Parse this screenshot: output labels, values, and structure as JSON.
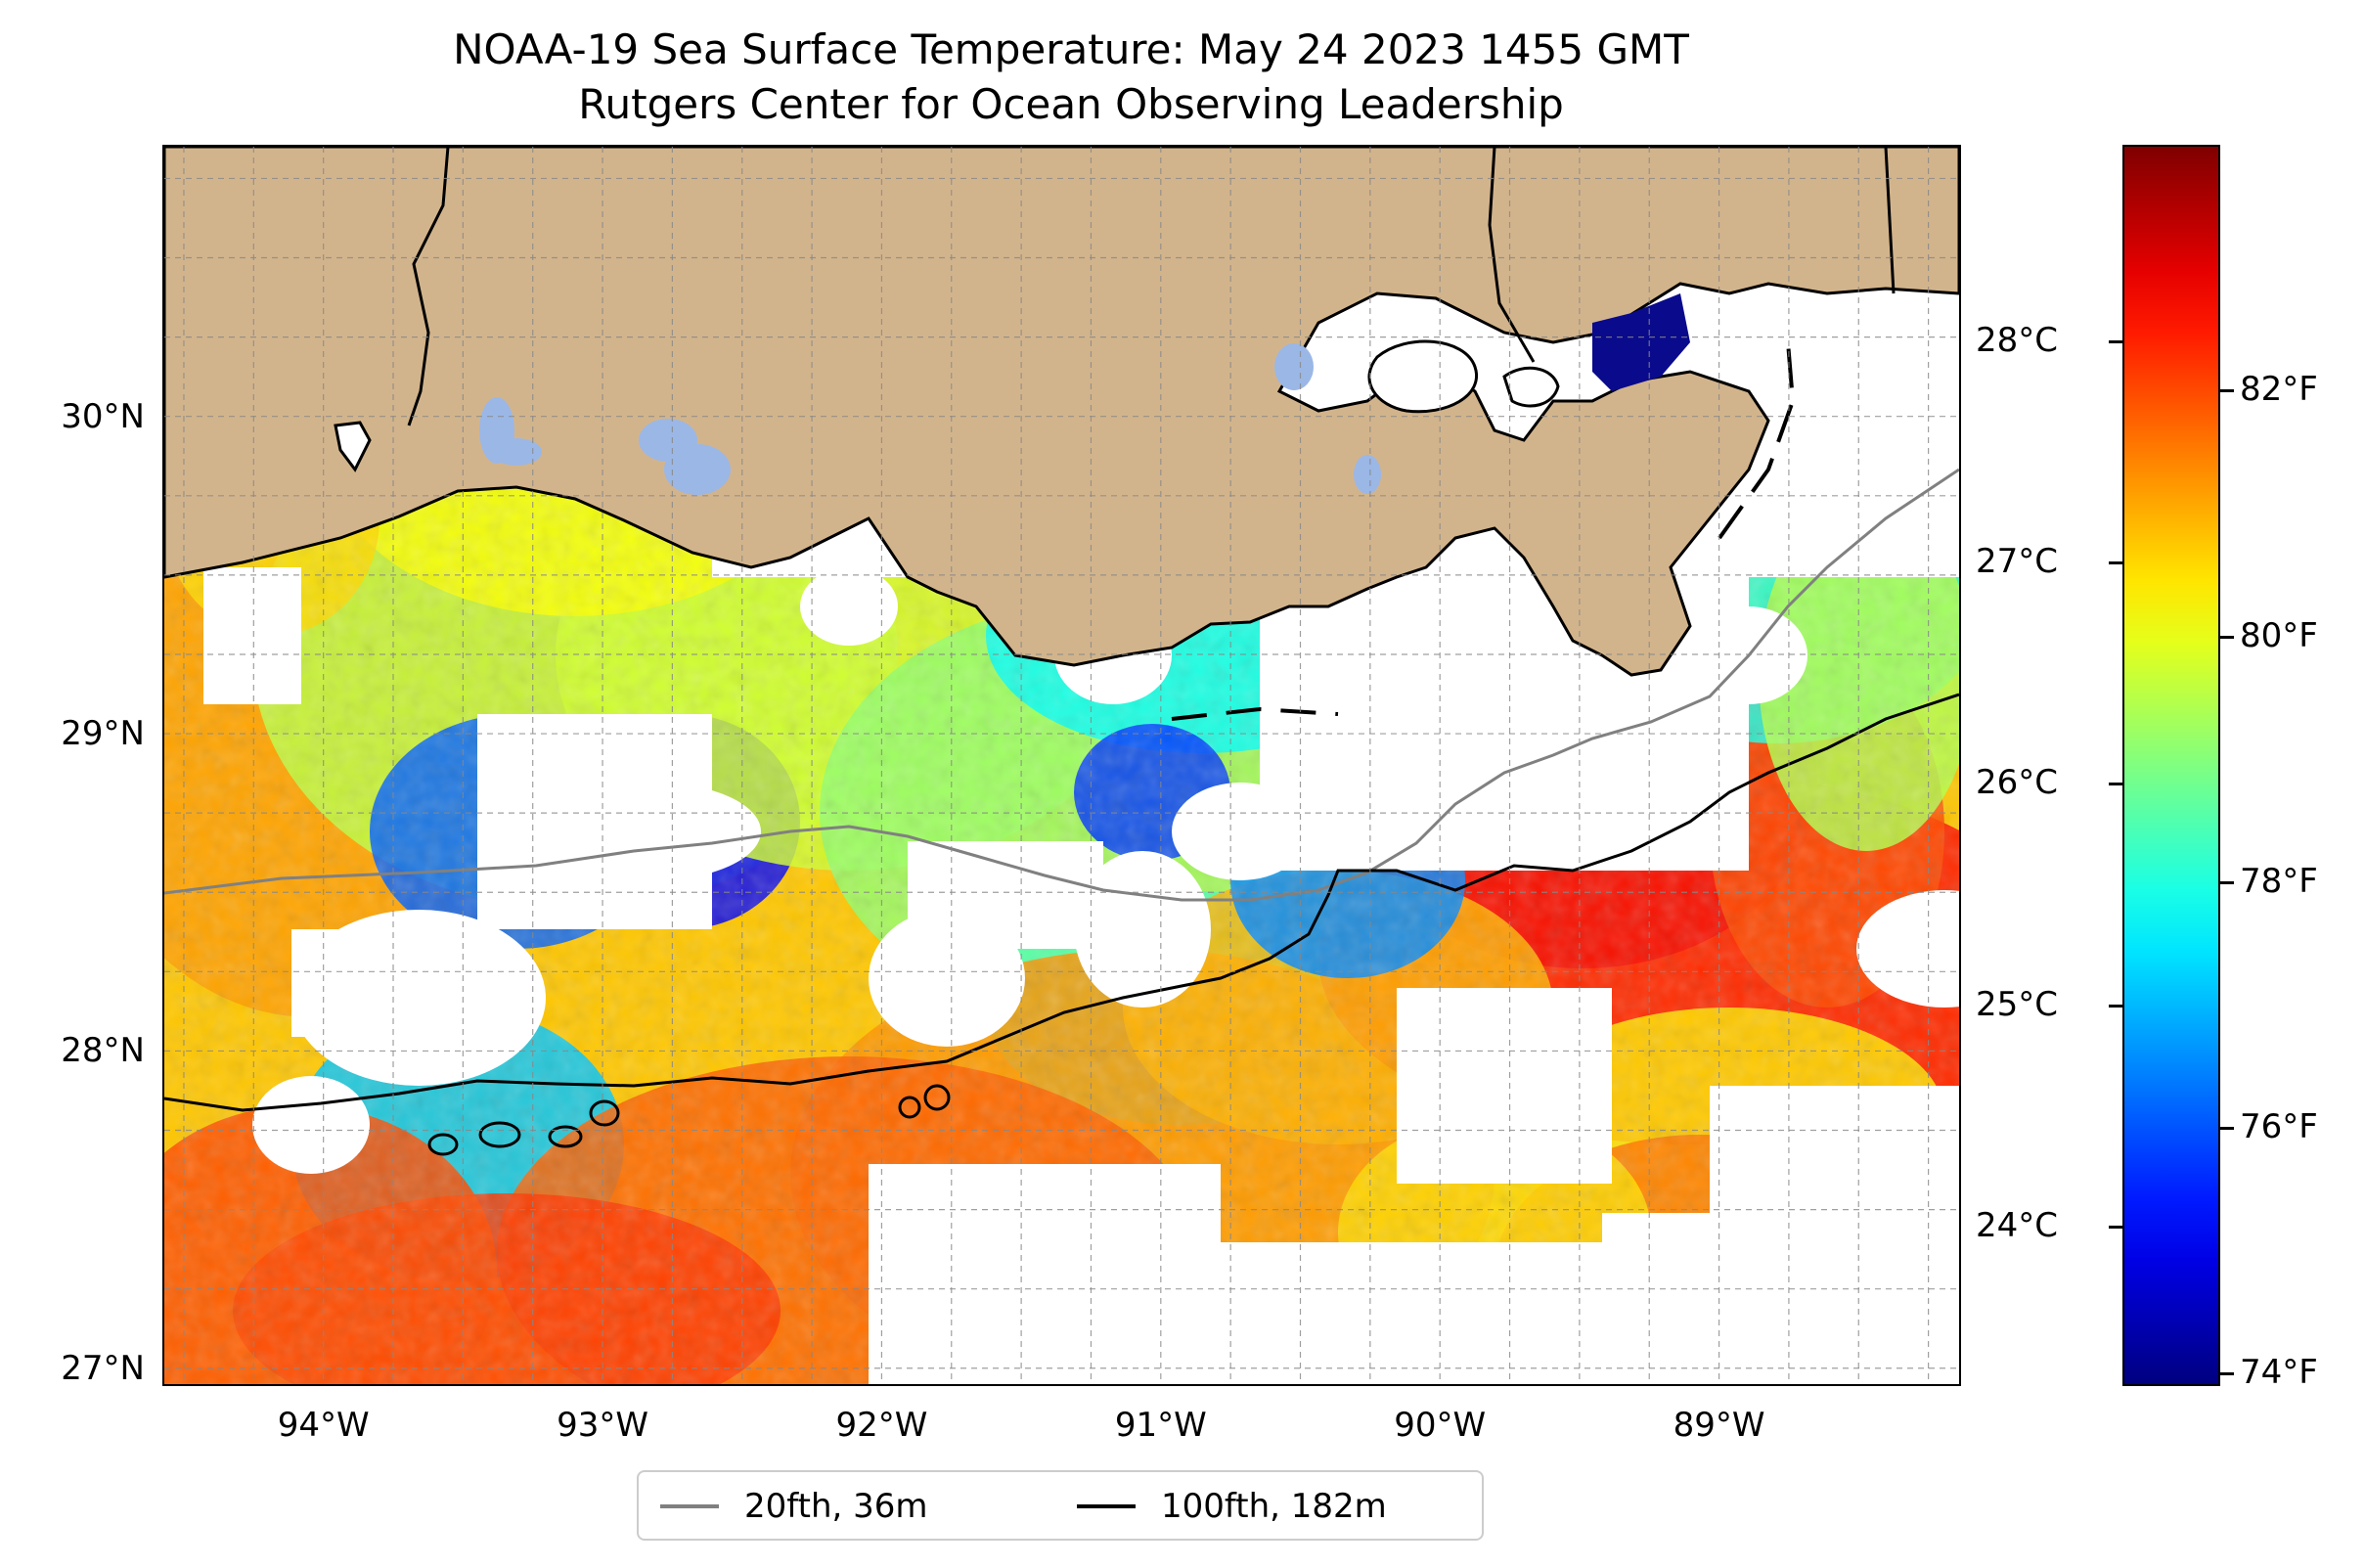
{
  "title": {
    "line1": "NOAA-19 Sea Surface Temperature: May 24 2023 1455 GMT",
    "line2": "Rutgers Center for Ocean Observing Leadership"
  },
  "map": {
    "lon_range": [
      -94.57,
      -88.14
    ],
    "lat_range": [
      26.95,
      30.85
    ],
    "land_color": "#d2b48c",
    "inland_water_color": "#9bb7e6",
    "no_data_color": "#ffffff",
    "gridlines": true,
    "lat_ticks": [
      {
        "value": 27,
        "label": "27°N"
      },
      {
        "value": 28,
        "label": "28°N"
      },
      {
        "value": 29,
        "label": "29°N"
      },
      {
        "value": 30,
        "label": "30°N"
      }
    ],
    "lon_ticks": [
      {
        "value": -94,
        "label": "94°W"
      },
      {
        "value": -93,
        "label": "93°W"
      },
      {
        "value": -92,
        "label": "92°W"
      },
      {
        "value": -91,
        "label": "91°W"
      },
      {
        "value": -90,
        "label": "90°W"
      },
      {
        "value": -89,
        "label": "89°W"
      }
    ]
  },
  "colorbar": {
    "colormap": "jet",
    "range_f": [
      73.9,
      84.0
    ],
    "celsius_ticks": [
      {
        "value": 24,
        "label": "24°C"
      },
      {
        "value": 25,
        "label": "25°C"
      },
      {
        "value": 26,
        "label": "26°C"
      },
      {
        "value": 27,
        "label": "27°C"
      },
      {
        "value": 28,
        "label": "28°C"
      }
    ],
    "fahrenheit_ticks": [
      {
        "value": 74,
        "label": "74°F"
      },
      {
        "value": 76,
        "label": "76°F"
      },
      {
        "value": 78,
        "label": "78°F"
      },
      {
        "value": 80,
        "label": "80°F"
      },
      {
        "value": 82,
        "label": "82°F"
      }
    ]
  },
  "legend": {
    "items": [
      {
        "label": "20fth, 36m",
        "color": "#808080"
      },
      {
        "label": "100fth, 182m",
        "color": "#000000"
      }
    ]
  }
}
